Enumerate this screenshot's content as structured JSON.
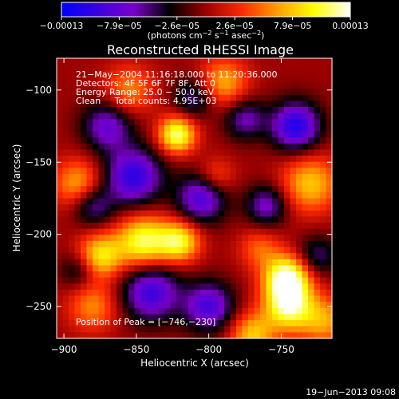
{
  "chart_data": {
    "type": "heatmap",
    "title": "Reconstructed RHESSI Image",
    "xlabel": "Heliocentric X (arcsec)",
    "ylabel": "Heliocentric Y (arcsec)",
    "xlim": [
      -905,
      -715
    ],
    "ylim": [
      -272,
      -78
    ],
    "x_ticks": [
      -900,
      -850,
      -800,
      -750
    ],
    "x_tick_labels": [
      "−900",
      "−850",
      "−800",
      "−750"
    ],
    "y_ticks": [
      -100,
      -150,
      -200,
      -250
    ],
    "y_tick_labels": [
      "−100",
      "−150",
      "−200",
      "−250"
    ],
    "colorbar": {
      "min": -0.00013,
      "max": 0.00013,
      "tick_labels": [
        "−0.00013",
        "−7.9e−05",
        "−2.6e−05",
        "2.6e−05",
        "7.9e−05",
        "0.00013"
      ],
      "unit_label": "(photons cm",
      "unit_sup1": "−2",
      "unit_mid": " s",
      "unit_sup2": "−1",
      "unit_end": " asec",
      "unit_sup3": "−2",
      "unit_close": ")",
      "colors": [
        "#0000ff",
        "#3a00e0",
        "#7a00c8",
        "#000000",
        "#9b0000",
        "#ff2a00",
        "#ffa000",
        "#ffff00",
        "#ffffff"
      ]
    },
    "annotations": [
      "21−May−2004 11:16:18.000 to 11:20:36.000",
      "Detectors: 4F 5F 6F 7F 8F, Att 0",
      "Energy Range: 25.0 − 50.0 keV",
      "Clean     Total counts: 4.95E+03"
    ],
    "peak_label": "Position of Peak = [−746,−230]",
    "peak": [
      -746,
      -230
    ],
    "sources": [
      {
        "x": -746,
        "y": -230,
        "amp": 1.0,
        "sigma": 11
      },
      {
        "x": -745,
        "y": -250,
        "amp": 0.85,
        "sigma": 12
      },
      {
        "x": -822,
        "y": -131,
        "amp": 0.9,
        "sigma": 9
      },
      {
        "x": -845,
        "y": -205,
        "amp": 0.85,
        "sigma": 13
      },
      {
        "x": -875,
        "y": -215,
        "amp": 0.7,
        "sigma": 11
      },
      {
        "x": -820,
        "y": -205,
        "amp": 0.75,
        "sigma": 10
      },
      {
        "x": -890,
        "y": -165,
        "amp": 0.55,
        "sigma": 12
      },
      {
        "x": -730,
        "y": -165,
        "amp": 0.6,
        "sigma": 14
      },
      {
        "x": -790,
        "y": -95,
        "amp": 0.55,
        "sigma": 12
      },
      {
        "x": -770,
        "y": -270,
        "amp": 0.6,
        "sigma": 11
      },
      {
        "x": -720,
        "y": -260,
        "amp": 0.5,
        "sigma": 12
      },
      {
        "x": -855,
        "y": -100,
        "amp": 0.45,
        "sigma": 12
      },
      {
        "x": -795,
        "y": -160,
        "amp": 0.35,
        "sigma": 9
      },
      {
        "x": -880,
        "y": -250,
        "amp": 0.45,
        "sigma": 12
      },
      {
        "x": -765,
        "y": -210,
        "amp": 0.35,
        "sigma": 10
      },
      {
        "x": -740,
        "y": -125,
        "amp": -0.85,
        "sigma": 12
      },
      {
        "x": -852,
        "y": -160,
        "amp": -0.8,
        "sigma": 14
      },
      {
        "x": -840,
        "y": -240,
        "amp": -0.75,
        "sigma": 14
      },
      {
        "x": -805,
        "y": -175,
        "amp": -0.7,
        "sigma": 12
      },
      {
        "x": -870,
        "y": -125,
        "amp": -0.6,
        "sigma": 12
      },
      {
        "x": -880,
        "y": -180,
        "amp": -0.5,
        "sigma": 10
      },
      {
        "x": -800,
        "y": -250,
        "amp": -0.7,
        "sigma": 12
      },
      {
        "x": -760,
        "y": -180,
        "amp": -0.55,
        "sigma": 10
      },
      {
        "x": -775,
        "y": -120,
        "amp": -0.5,
        "sigma": 10
      },
      {
        "x": -810,
        "y": -105,
        "amp": -0.45,
        "sigma": 10
      },
      {
        "x": -890,
        "y": -225,
        "amp": -0.35,
        "sigma": 9
      },
      {
        "x": -725,
        "y": -215,
        "amp": -0.4,
        "sigma": 10
      }
    ]
  },
  "timestamp": "19−Jun−2013 09:08"
}
